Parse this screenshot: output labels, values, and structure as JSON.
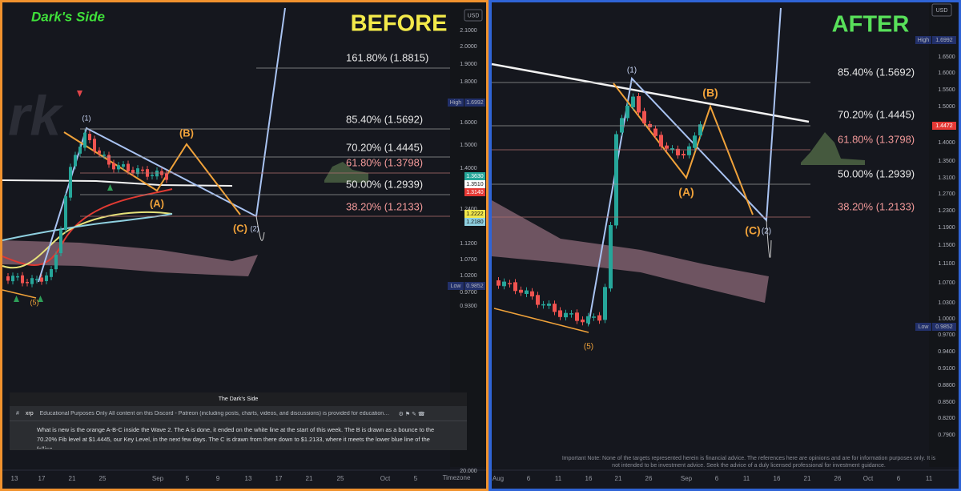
{
  "before": {
    "logo": "Dark's Side",
    "title": "BEFORE",
    "currency": "USD",
    "price_labels": [
      "2.1000",
      "2.0000",
      "1.9000",
      "1.8000",
      "1.6000",
      "1.5000",
      "1.4000",
      "1.2400",
      "1.1200",
      "1.0700",
      "1.0200",
      "0.9700",
      "0.9300",
      "20.000"
    ],
    "badges": [
      "1.3630",
      "1.3510",
      "1.3140",
      "1.2222",
      "1.2180"
    ],
    "high_label": "High",
    "high_value": "1.6992",
    "low_label": "Low",
    "low_value": "0.9852",
    "fib_levels": [
      "161.80% (1.8815)",
      "85.40% (1.5692)",
      "70.20% (1.4445)",
      "61.80% (1.3798)",
      "50.00% (1.2939)",
      "38.20% (1.2133)"
    ],
    "wave_labels": [
      "(1)",
      "(B)",
      "(A)",
      "(C)",
      "(2)",
      "(5)"
    ],
    "dates": [
      "13",
      "17",
      "21",
      "25",
      "Sep",
      "5",
      "9",
      "13",
      "17",
      "21",
      "25",
      "Oct",
      "5"
    ],
    "timezone": "Timezone",
    "discord": {
      "server": "The Dark's Side",
      "channel": "xrp",
      "topic": "Educational Purposes Only All content on this Discord - Patreon (including posts, charts, videos, and discussions) is provided for educational and info...",
      "message": "What is new is the orange A-B-C inside the Wave 2. The A is done, it ended on the white line at the start of this week. The B is drawn as a bounce to the 70.20% Fib level at $1.4445, our Key Level, in the next few days. The C is drawn from there down to $1.2133, where it meets the lower blue line of the falling"
    }
  },
  "after": {
    "title": "AFTER",
    "currency": "USD",
    "price_labels": [
      "1.6500",
      "1.6000",
      "1.5500",
      "1.5000",
      "1.4000",
      "1.3500",
      "1.3100",
      "1.2700",
      "1.2300",
      "1.1900",
      "1.1500",
      "1.1100",
      "1.0700",
      "1.0300",
      "1.0000",
      "0.9700",
      "0.9400",
      "0.9100",
      "0.8800",
      "0.8500",
      "0.8200",
      "0.7900"
    ],
    "badges": [
      "1.4472"
    ],
    "high_label": "High",
    "high_value": "1.6992",
    "low_label": "Low",
    "low_value": "0.9852",
    "fib_levels": [
      "85.40% (1.5692)",
      "70.20% (1.4445)",
      "61.80% (1.3798)",
      "50.00% (1.2939)",
      "38.20% (1.2133)"
    ],
    "wave_labels": [
      "(1)",
      "(B)",
      "(A)",
      "(C)",
      "(2)",
      "(5)"
    ],
    "dates": [
      "Aug",
      "6",
      "11",
      "16",
      "21",
      "26",
      "Sep",
      "6",
      "11",
      "16",
      "21",
      "26",
      "Oct",
      "6",
      "11"
    ],
    "note": "Important Note: None of the targets represented herein is financial advice. The references here are opinions and are for information purposes only. It is not intended to be investment advice. Seek the advice of a duly licensed professional for investment guidance."
  }
}
